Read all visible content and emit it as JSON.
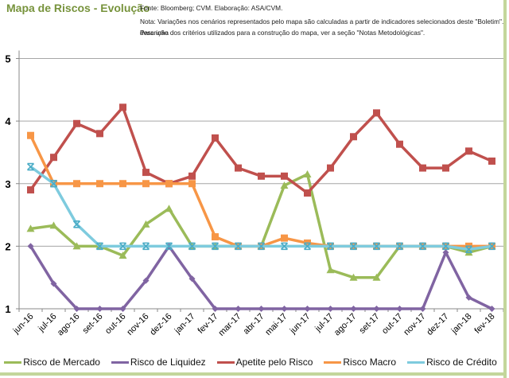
{
  "header": {
    "title": "Mapa de Riscos - Evolução",
    "source": "Fonte: Bloomberg; CVM. Elaboração: ASA/CVM.",
    "note_line1": "Nota: Variações nos cenários representados pelo mapa são calculadas a partir de indicadores selecionados deste \"Boletim\". Para uma",
    "note_line2": "descrição dos critérios utilizados para a construção do mapa, ver a seção \"Notas Metodológicas\"."
  },
  "chart_data": {
    "type": "line",
    "title": "Mapa de Riscos - Evolução",
    "xlabel": "",
    "ylabel": "",
    "ylim": [
      1,
      5
    ],
    "yticks": [
      "1",
      "2",
      "3",
      "4",
      "5"
    ],
    "grid": true,
    "legend_position": "bottom",
    "categories": [
      "jun-16",
      "jul-16",
      "ago-16",
      "set-16",
      "out-16",
      "nov-16",
      "dez-16",
      "jan-17",
      "fev-17",
      "mar-17",
      "abr-17",
      "mai-17",
      "jun-17",
      "jul-17",
      "ago-17",
      "set-17",
      "out-17",
      "nov-17",
      "dez-17",
      "jan-18",
      "fev-18"
    ],
    "series": [
      {
        "name": "Risco de Mercado",
        "color": "#9bbb59",
        "marker": "triangle",
        "values": [
          2.28,
          2.33,
          2.0,
          2.0,
          1.85,
          2.35,
          2.6,
          2.0,
          2.0,
          2.0,
          2.0,
          2.97,
          3.15,
          1.62,
          1.5,
          1.5,
          2.0,
          2.0,
          2.0,
          1.9,
          2.0
        ]
      },
      {
        "name": "Risco de Liquidez",
        "color": "#8064a2",
        "marker": "diamond",
        "values": [
          2.0,
          1.4,
          1.0,
          1.0,
          1.0,
          1.45,
          2.0,
          1.48,
          1.0,
          1.0,
          1.0,
          1.0,
          1.0,
          1.0,
          1.0,
          1.0,
          1.0,
          1.0,
          1.9,
          1.18,
          1.0
        ]
      },
      {
        "name": "Apetite pelo Risco",
        "color": "#c0504d",
        "marker": "square",
        "values": [
          2.9,
          3.42,
          3.96,
          3.8,
          4.22,
          3.18,
          3.0,
          3.12,
          3.73,
          3.25,
          3.12,
          3.12,
          2.85,
          3.25,
          3.75,
          4.13,
          3.63,
          3.25,
          3.25,
          3.52,
          3.36
        ]
      },
      {
        "name": "Risco Macro",
        "color": "#f79646",
        "marker": "square",
        "values": [
          3.77,
          3.0,
          3.0,
          3.0,
          3.0,
          3.0,
          3.0,
          3.0,
          2.15,
          2.0,
          2.0,
          2.13,
          2.05,
          2.0,
          2.0,
          2.0,
          2.0,
          2.0,
          2.0,
          2.0,
          2.0
        ]
      },
      {
        "name": "Risco de Crédito",
        "color": "#7ecbde",
        "marker": "x",
        "values": [
          3.27,
          3.0,
          2.35,
          2.0,
          2.0,
          2.0,
          2.0,
          2.0,
          2.0,
          2.0,
          2.0,
          2.0,
          2.0,
          2.0,
          2.0,
          2.0,
          2.0,
          2.0,
          2.0,
          1.95,
          2.0
        ]
      }
    ]
  }
}
